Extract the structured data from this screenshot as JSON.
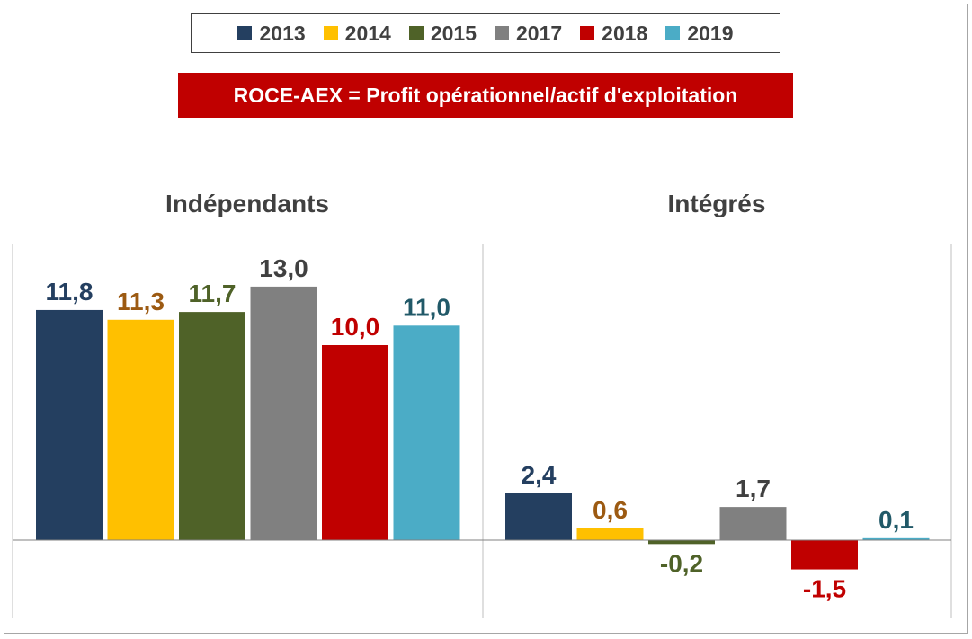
{
  "formula": "ROCE-AEX = Profit opérationnel/actif d'exploitation",
  "chart_data": {
    "type": "bar",
    "series": [
      {
        "name": "2013",
        "color": "#243f60",
        "label_color": "#243f60"
      },
      {
        "name": "2014",
        "color": "#ffc000",
        "label_color": "#9c5a12"
      },
      {
        "name": "2015",
        "color": "#4f6228",
        "label_color": "#4f6228"
      },
      {
        "name": "2017",
        "color": "#808080",
        "label_color": "#404040"
      },
      {
        "name": "2018",
        "color": "#c00000",
        "label_color": "#c00000"
      },
      {
        "name": "2019",
        "color": "#4bacc6",
        "label_color": "#215968"
      }
    ],
    "panels": [
      {
        "title": "Indépendants",
        "values": [
          11.8,
          11.3,
          11.7,
          13.0,
          10.0,
          11.0
        ],
        "labels": [
          "11,8",
          "11,3",
          "11,7",
          "13,0",
          "10,0",
          "11,0"
        ]
      },
      {
        "title": "Intégrés",
        "values": [
          2.4,
          0.6,
          -0.2,
          1.7,
          -1.5,
          0.1
        ],
        "labels": [
          "2,4",
          "0,6",
          "-0,2",
          "1,7",
          "-1,5",
          "0,1"
        ]
      }
    ],
    "legend_position": "top",
    "grid": false
  }
}
